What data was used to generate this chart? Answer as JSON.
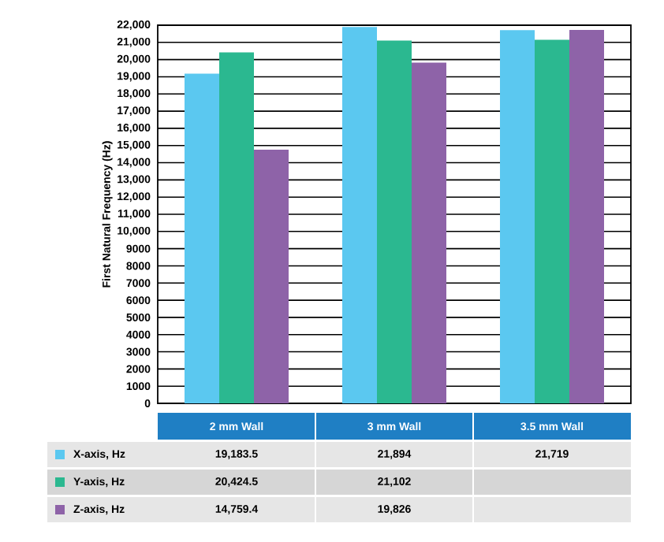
{
  "chart_data": {
    "type": "bar",
    "ylabel": "First Natural Frequency (Hz)",
    "categories": [
      "2 mm Wall",
      "3 mm Wall",
      "3.5 mm Wall"
    ],
    "series": [
      {
        "name": "X-axis, Hz",
        "color": "#5bc8f0",
        "values": [
          19183.5,
          21894,
          21719
        ],
        "value_labels": [
          "19,183.5",
          "21,894",
          "21,719"
        ]
      },
      {
        "name": "Y-axis, Hz",
        "color": "#2bb890",
        "values": [
          20424.5,
          21102,
          21150
        ],
        "value_labels": [
          "20,424.5",
          "21,102",
          null
        ]
      },
      {
        "name": "Z-axis, Hz",
        "color": "#8e63a8",
        "values": [
          14759.4,
          19826,
          21720
        ],
        "value_labels": [
          "14,759.4",
          "19,826",
          null
        ]
      }
    ],
    "ylim": [
      0,
      22000
    ],
    "yticks": [
      0,
      1000,
      2000,
      3000,
      4000,
      5000,
      6000,
      7000,
      8000,
      9000,
      {
        "value": 10000,
        "label": "10,000"
      },
      {
        "value": 11000,
        "label": "11,000"
      },
      {
        "value": 12000,
        "label": "12,000"
      },
      {
        "value": 13000,
        "label": "13,000"
      },
      {
        "value": 14000,
        "label": "14,000"
      },
      {
        "value": 15000,
        "label": "15,000"
      },
      {
        "value": 16000,
        "label": "16,000"
      },
      {
        "value": 17000,
        "label": "17,000"
      },
      {
        "value": 18000,
        "label": "18,000"
      },
      {
        "value": 19000,
        "label": "19,000"
      },
      {
        "value": 20000,
        "label": "20,000"
      },
      {
        "value": 21000,
        "label": "21,000"
      },
      {
        "value": 22000,
        "label": "22,000"
      }
    ],
    "grid": "y",
    "legend": "bottom"
  }
}
